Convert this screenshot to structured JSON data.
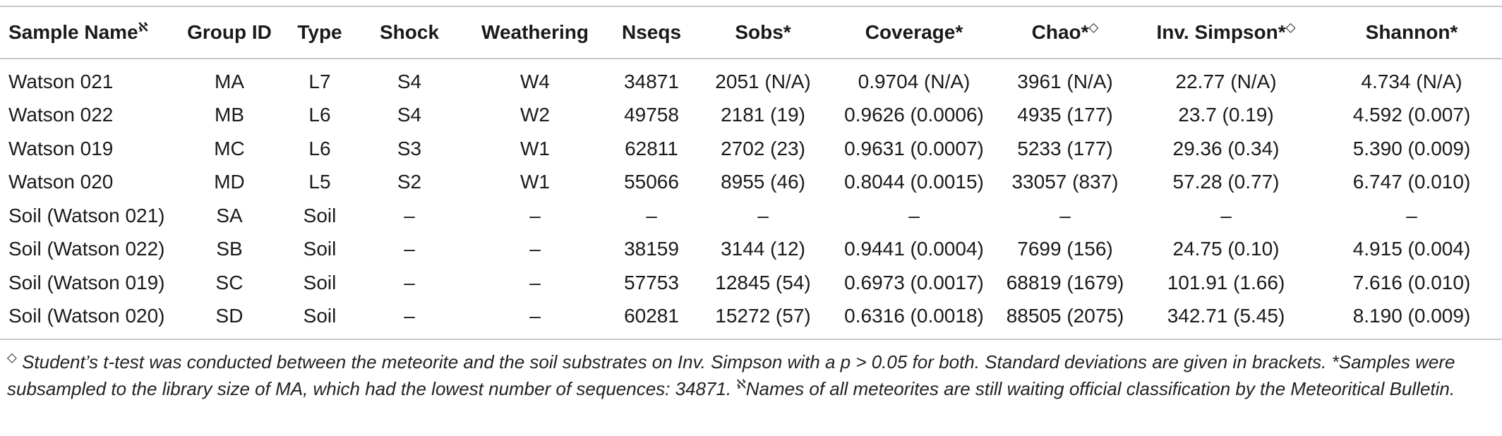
{
  "table": {
    "headers": [
      {
        "label": "Sample Name",
        "sup": "ℵ"
      },
      {
        "label": "Group ID",
        "sup": ""
      },
      {
        "label": "Type",
        "sup": ""
      },
      {
        "label": "Shock",
        "sup": ""
      },
      {
        "label": "Weathering",
        "sup": ""
      },
      {
        "label": "Nseqs",
        "sup": ""
      },
      {
        "label": "Sobs*",
        "sup": ""
      },
      {
        "label": "Coverage*",
        "sup": ""
      },
      {
        "label": "Chao*",
        "sup": "◇"
      },
      {
        "label": "Inv. Simpson*",
        "sup": "◇"
      },
      {
        "label": "Shannon*",
        "sup": ""
      }
    ],
    "rows": [
      [
        "Watson 021",
        "MA",
        "L7",
        "S4",
        "W4",
        "34871",
        "2051 (N/A)",
        "0.9704 (N/A)",
        "3961 (N/A)",
        "22.77 (N/A)",
        "4.734 (N/A)"
      ],
      [
        "Watson 022",
        "MB",
        "L6",
        "S4",
        "W2",
        "49758",
        "2181 (19)",
        "0.9626 (0.0006)",
        "4935 (177)",
        "23.7 (0.19)",
        "4.592 (0.007)"
      ],
      [
        "Watson 019",
        "MC",
        "L6",
        "S3",
        "W1",
        "62811",
        "2702 (23)",
        "0.9631 (0.0007)",
        "5233 (177)",
        "29.36 (0.34)",
        "5.390 (0.009)"
      ],
      [
        "Watson 020",
        "MD",
        "L5",
        "S2",
        "W1",
        "55066",
        "8955 (46)",
        "0.8044 (0.0015)",
        "33057 (837)",
        "57.28 (0.77)",
        "6.747 (0.010)"
      ],
      [
        "Soil (Watson 021)",
        "SA",
        "Soil",
        "–",
        "–",
        "–",
        "–",
        "–",
        "–",
        "–",
        "–"
      ],
      [
        "Soil (Watson 022)",
        "SB",
        "Soil",
        "–",
        "–",
        "38159",
        "3144 (12)",
        "0.9441 (0.0004)",
        "7699 (156)",
        "24.75 (0.10)",
        "4.915 (0.004)"
      ],
      [
        "Soil (Watson 019)",
        "SC",
        "Soil",
        "–",
        "–",
        "57753",
        "12845 (54)",
        "0.6973 (0.0017)",
        "68819 (1679)",
        "101.91 (1.66)",
        "7.616 (0.010)"
      ],
      [
        "Soil (Watson 020)",
        "SD",
        "Soil",
        "–",
        "–",
        "60281",
        "15272 (57)",
        "0.6316 (0.0018)",
        "88505 (2075)",
        "342.71 (5.45)",
        "8.190 (0.009)"
      ]
    ]
  },
  "footnotes": {
    "diamond_symbol": "◇",
    "diamond_text": "Student’s t-test was conducted between the meteorite and the soil substrates on Inv. Simpson with a p > 0.05 for both. Standard deviations are given in brackets.",
    "star_text": "*Samples were subsampled to the library size of MA, which had the lowest number of sequences: 34871.",
    "aleph_symbol": "ℵ",
    "aleph_text": "Names of all meteorites are still waiting official classification by the Meteoritical Bulletin."
  }
}
